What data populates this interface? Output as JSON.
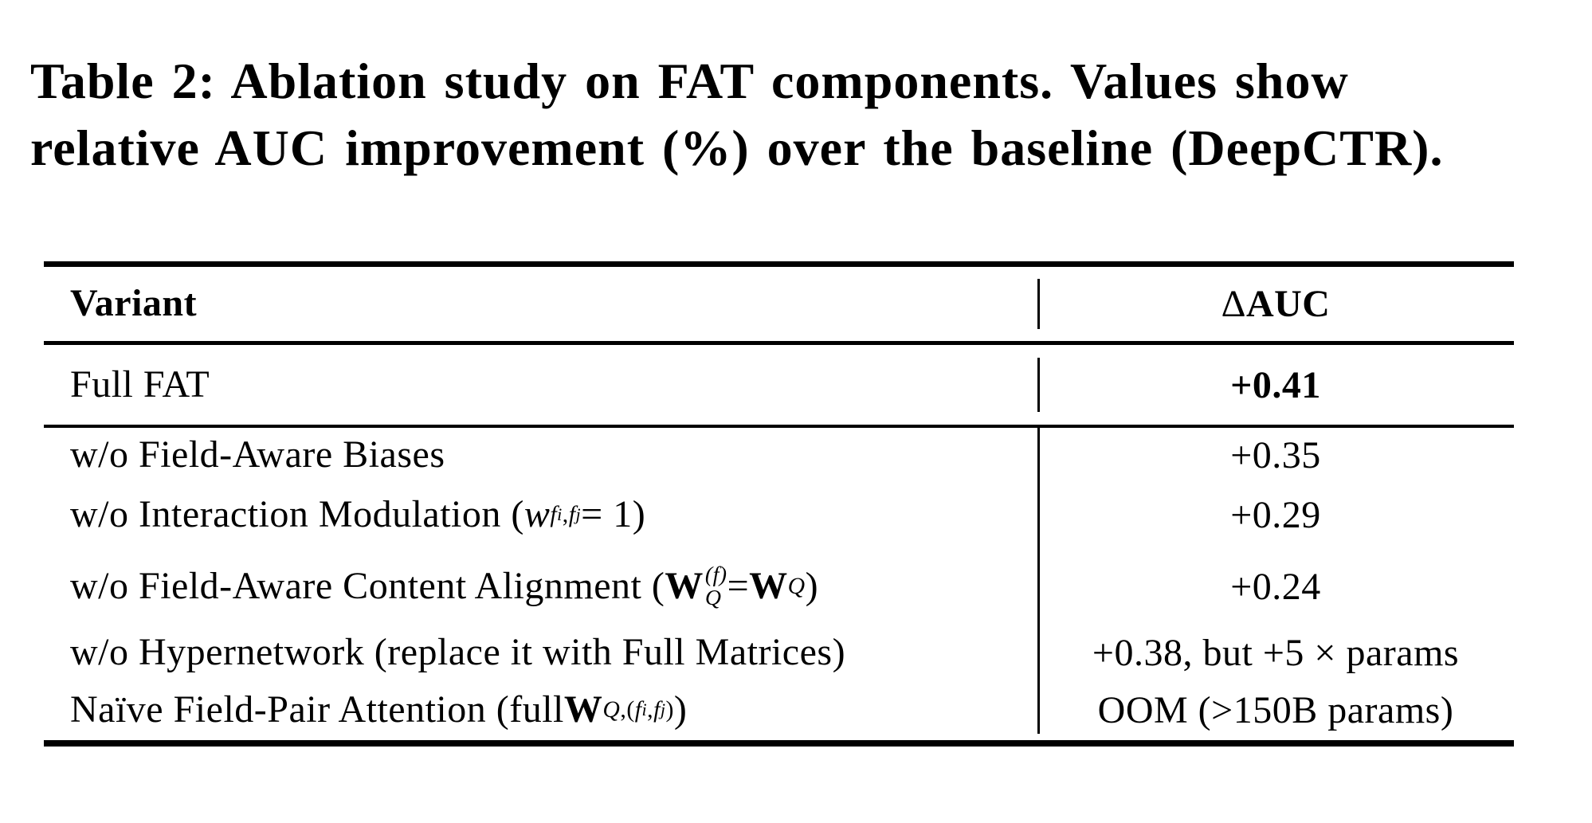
{
  "colors": {
    "background": "#ffffff",
    "text": "#000000",
    "rule": "#000000"
  },
  "caption": {
    "line1": "Table 2: Ablation study on FAT components. Values show",
    "line2": "relative AUC improvement (%) over the baseline (DeepCTR)."
  },
  "table": {
    "header": {
      "variant_segments": [
        {
          "t": "Variant",
          "s": "b"
        }
      ],
      "delta_segments": [
        {
          "t": "Δ ",
          "s": ""
        },
        {
          "t": "AUC",
          "s": "b"
        }
      ],
      "variant_text": "Variant",
      "delta_text": "Δ AUC"
    },
    "full_row": {
      "variant": "Full FAT",
      "delta": "+0.41"
    },
    "ablation_rows": [
      {
        "variant_text": "w/o Field-Aware Biases",
        "variant_segments": [
          {
            "t": "w/o Field-Aware Biases",
            "s": ""
          }
        ],
        "delta": "+0.35"
      },
      {
        "variant_text": "w/o Interaction Modulation (w_{f_i,f_j} = 1)",
        "variant_segments": [
          {
            "t": "w/o Interaction Modulation (",
            "s": ""
          },
          {
            "t": "w",
            "s": "i"
          },
          {
            "t": "f",
            "s": "sub i"
          },
          {
            "t": "i",
            "s": "ssub i"
          },
          {
            "t": ",",
            "s": "sub"
          },
          {
            "t": "f",
            "s": "sub i"
          },
          {
            "t": "j",
            "s": "ssub i"
          },
          {
            "t": " = 1)",
            "s": ""
          }
        ],
        "delta": "+0.29"
      },
      {
        "variant_text": "w/o Field-Aware Content Alignment (W_Q^{(f)} = W_Q)",
        "variant_segments": [
          {
            "t": "w/o Field-Aware Content Alignment (",
            "s": ""
          },
          {
            "t": "W",
            "s": "b"
          },
          {
            "stack": {
              "sup": "(f)",
              "sub": "Q"
            }
          },
          {
            "t": " = ",
            "s": ""
          },
          {
            "t": "W",
            "s": "b"
          },
          {
            "t": "Q",
            "s": "sub i"
          },
          {
            "t": ")",
            "s": ""
          }
        ],
        "delta": "+0.24"
      },
      {
        "variant_text": "w/o Hypernetwork (replace it with Full Matrices)",
        "variant_segments": [
          {
            "t": "w/o Hypernetwork (replace it with Full Matrices)",
            "s": ""
          }
        ],
        "delta": "+0.38, but +5 × params"
      },
      {
        "variant_text": "Naïve Field-Pair Attention (full W_{Q,(f_i,f_j)})",
        "variant_segments": [
          {
            "t": "Naïve Field-Pair Attention (full ",
            "s": ""
          },
          {
            "t": "W",
            "s": "b"
          },
          {
            "t": "Q",
            "s": "sub i"
          },
          {
            "t": ",(",
            "s": "sub"
          },
          {
            "t": "f",
            "s": "sub i"
          },
          {
            "t": "i",
            "s": "ssub i"
          },
          {
            "t": ",",
            "s": "sub"
          },
          {
            "t": "f",
            "s": "sub i"
          },
          {
            "t": "j",
            "s": "ssub i"
          },
          {
            "t": ")",
            "s": "sub"
          },
          {
            "t": ")",
            "s": ""
          }
        ],
        "delta": "OOM (>150B params)"
      }
    ]
  }
}
